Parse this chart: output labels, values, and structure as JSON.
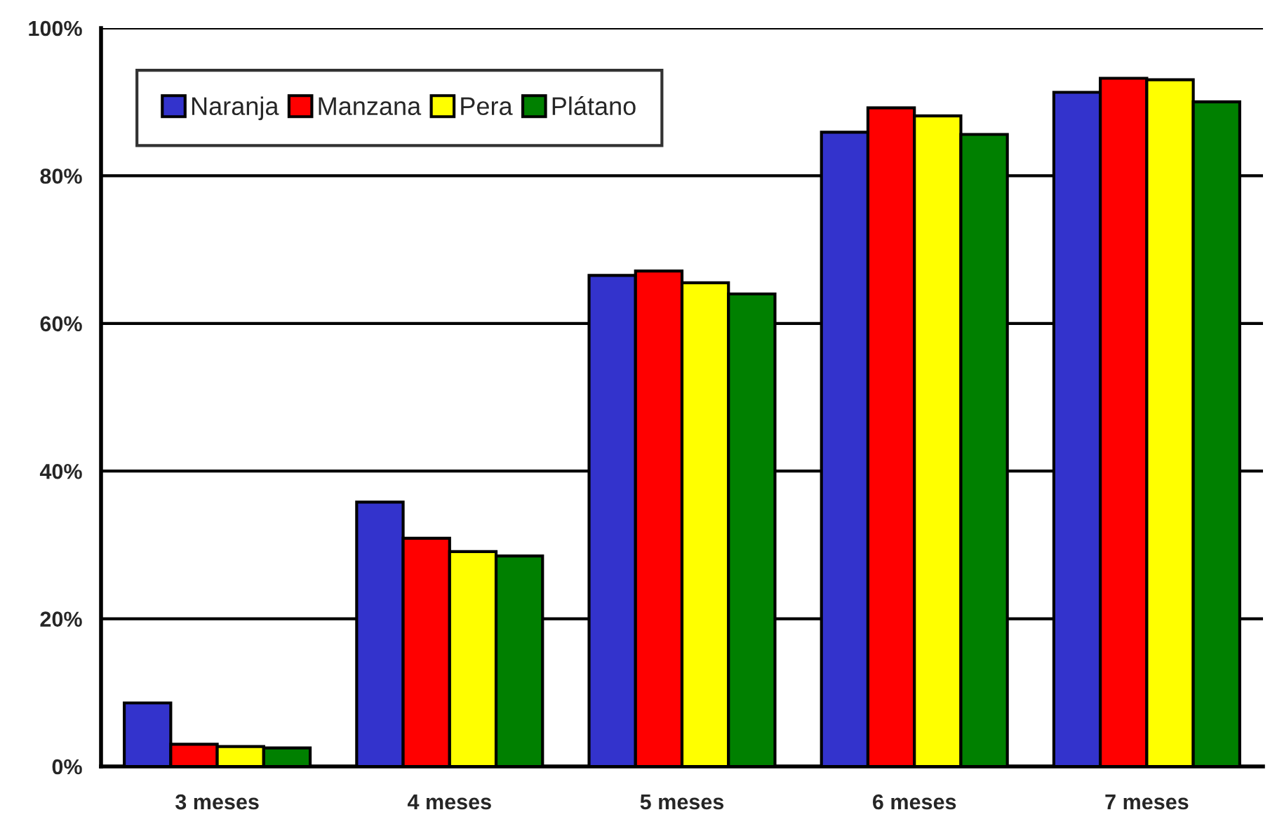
{
  "chart_data": {
    "type": "bar",
    "categories": [
      "3 meses",
      "4 meses",
      "5 meses",
      "6 meses",
      "7 meses"
    ],
    "series": [
      {
        "name": "Naranja",
        "color": "#3333cc",
        "values": [
          8.6,
          35.8,
          66.5,
          85.9,
          91.3
        ]
      },
      {
        "name": "Manzana",
        "color": "#ff0000",
        "values": [
          3.0,
          30.9,
          67.1,
          89.2,
          93.2
        ]
      },
      {
        "name": "Pera",
        "color": "#ffff00",
        "values": [
          2.7,
          29.1,
          65.5,
          88.1,
          93.0
        ]
      },
      {
        "name": "Plátano",
        "color": "#008000",
        "values": [
          2.5,
          28.5,
          64.0,
          85.6,
          90.0
        ]
      }
    ],
    "ylim": [
      0,
      100
    ],
    "yticks": [
      {
        "value": 0,
        "label": "0%"
      },
      {
        "value": 20,
        "label": "20%"
      },
      {
        "value": 40,
        "label": "40%"
      },
      {
        "value": 60,
        "label": "60%"
      },
      {
        "value": 80,
        "label": "80%"
      },
      {
        "value": 100,
        "label": "100%"
      }
    ],
    "grid": "y",
    "legend": "top left"
  }
}
